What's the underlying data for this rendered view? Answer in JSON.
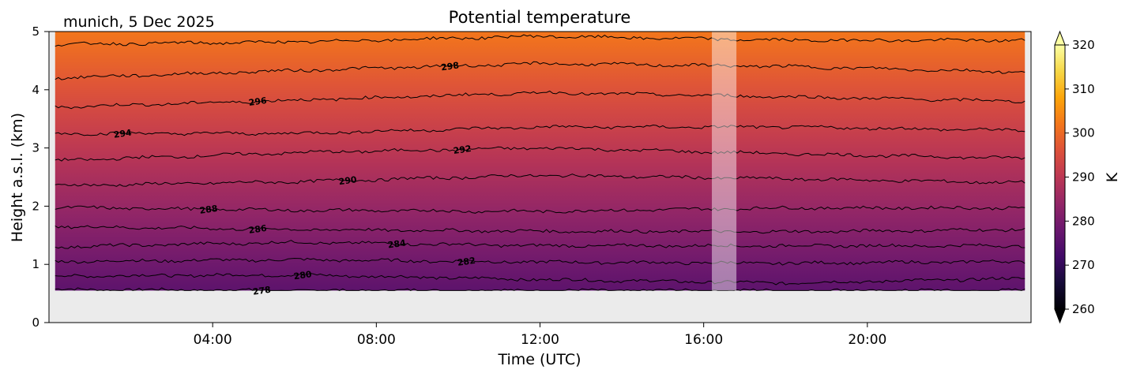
{
  "header": {
    "location_date": "munich, 5 Dec 2025",
    "title": "Potential temperature"
  },
  "chart_data": {
    "type": "heatmap",
    "title": "Potential temperature",
    "xlabel": "Time (UTC)",
    "ylabel": "Height a.s.l. (km)",
    "x_range_hours": [
      0,
      24
    ],
    "xticks": [
      "04:00",
      "08:00",
      "12:00",
      "16:00",
      "20:00"
    ],
    "xtick_hours": [
      4,
      8,
      12,
      16,
      20
    ],
    "ylim": [
      0,
      5
    ],
    "yticks": [
      "0",
      "1",
      "2",
      "3",
      "4",
      "5"
    ],
    "data_height_range_km": [
      0.55,
      5.0
    ],
    "data_time_range_hours": [
      0.15,
      23.85
    ],
    "data_gap_hours": [
      16.2,
      16.8
    ],
    "colorbar": {
      "label": "K",
      "vmin": 260,
      "vmax": 320,
      "ticks": [
        "260",
        "270",
        "280",
        "290",
        "300",
        "310",
        "320"
      ],
      "extend": "both",
      "colormap": "inferno"
    },
    "field_range_K": {
      "bottom": 276,
      "top": 302
    },
    "contours": [
      {
        "level": 278,
        "label": "278",
        "label_hour": 5.2
      },
      {
        "level": 280,
        "label": "280",
        "label_hour": 6.2
      },
      {
        "level": 282,
        "label": "282",
        "label_hour": 10.2
      },
      {
        "level": 284,
        "label": "284",
        "label_hour": 8.5
      },
      {
        "level": 286,
        "label": "286",
        "label_hour": 5.1
      },
      {
        "level": 288,
        "label": "288",
        "label_hour": 3.9
      },
      {
        "level": 290,
        "label": "290",
        "label_hour": 7.3
      },
      {
        "level": 292,
        "label": "292",
        "label_hour": 10.1
      },
      {
        "level": 294,
        "label": "294",
        "label_hour": 1.8
      },
      {
        "level": 296,
        "label": "296",
        "label_hour": 5.1
      },
      {
        "level": 298,
        "label": "298",
        "label_hour": 9.8
      },
      {
        "level": 300,
        "label": "",
        "label_hour": null
      }
    ],
    "contour_heights_km": {
      "278": [
        0.57,
        0.55,
        0.55,
        0.55,
        0.55
      ],
      "280": [
        0.8,
        0.82,
        0.74,
        0.68,
        0.76
      ],
      "282": [
        1.05,
        1.08,
        1.04,
        1.02,
        1.05
      ],
      "284": [
        1.3,
        1.38,
        1.32,
        1.32,
        1.32
      ],
      "286": [
        1.65,
        1.6,
        1.57,
        1.56,
        1.6
      ],
      "288": [
        1.98,
        1.93,
        1.91,
        1.97,
        1.97
      ],
      "290": [
        2.35,
        2.42,
        2.53,
        2.47,
        2.4
      ],
      "292": [
        2.78,
        2.92,
        3.0,
        2.9,
        2.82
      ],
      "294": [
        3.25,
        3.25,
        3.36,
        3.36,
        3.3
      ],
      "296": [
        3.7,
        3.82,
        3.95,
        3.88,
        3.8
      ],
      "298": [
        4.2,
        4.33,
        4.45,
        4.4,
        4.3
      ],
      "300": [
        4.78,
        4.82,
        4.92,
        4.85,
        4.85
      ]
    },
    "grid": false,
    "background": "#ebebeb"
  }
}
